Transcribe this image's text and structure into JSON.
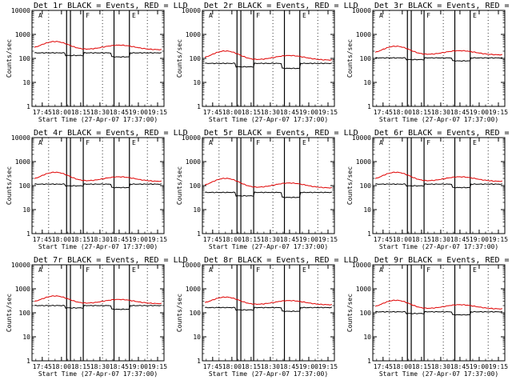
{
  "figure": {
    "colors": {
      "events": "#000000",
      "lld": "#e00000",
      "frame": "#000000",
      "background": "#ffffff"
    }
  },
  "chart_data": [
    {
      "type": "line",
      "title": "Det 1r BLACK = Events, RED = LLD",
      "ylabel": "Counts/sec",
      "xlabel": "Start Time (27-Apr-07 17:37:00)",
      "xticks": [
        "17:45",
        "18:00",
        "18:15",
        "18:30",
        "18:45",
        "19:00",
        "19:15"
      ],
      "yticks": [
        "1",
        "10",
        "100",
        "1000",
        "10000"
      ],
      "ylim": [
        1,
        10000
      ],
      "xlim_minutes": [
        0,
        103
      ],
      "attenuator_markers": [
        "A",
        "F",
        "E"
      ],
      "series": [
        {
          "name": "Events",
          "color": "#000000",
          "base": 170,
          "drops": [
            [
              26,
              40,
              0.78
            ],
            [
              62,
              76,
              0.68
            ]
          ]
        },
        {
          "name": "LLD",
          "color": "#e00000",
          "base": 230,
          "peak": [
            18,
            2.2
          ],
          "bump": [
            68,
            1.55
          ]
        }
      ]
    },
    {
      "type": "line",
      "title": "Det 2r BLACK = Events, RED = LLD",
      "ylabel": "Counts/sec",
      "xlabel": "Start Time (27-Apr-07 17:37:00)",
      "xticks": [
        "17:45",
        "18:00",
        "18:15",
        "18:30",
        "18:45",
        "19:00",
        "19:15"
      ],
      "yticks": [
        "1",
        "10",
        "100",
        "1000",
        "10000"
      ],
      "ylim": [
        1,
        10000
      ],
      "xlim_minutes": [
        0,
        103
      ],
      "attenuator_markers": [
        "A",
        "F",
        "E"
      ],
      "series": [
        {
          "name": "Events",
          "color": "#000000",
          "base": 62,
          "drops": [
            [
              26,
              40,
              0.72
            ],
            [
              62,
              76,
              0.62
            ]
          ]
        },
        {
          "name": "LLD",
          "color": "#e00000",
          "base": 85,
          "peak": [
            18,
            2.4
          ],
          "bump": [
            68,
            1.55
          ]
        }
      ]
    },
    {
      "type": "line",
      "title": "Det 3r BLACK = Events, RED = LLD",
      "ylabel": "Counts/sec",
      "xlabel": "Start Time (27-Apr-07 17:37:00)",
      "xticks": [
        "17:45",
        "18:00",
        "18:15",
        "18:30",
        "18:45",
        "19:00",
        "19:15"
      ],
      "yticks": [
        "1",
        "10",
        "100",
        "1000",
        "10000"
      ],
      "ylim": [
        1,
        10000
      ],
      "xlim_minutes": [
        0,
        103
      ],
      "attenuator_markers": [
        "A",
        "F",
        "E"
      ],
      "series": [
        {
          "name": "Events",
          "color": "#000000",
          "base": 105,
          "drops": [
            [
              26,
              40,
              0.85
            ],
            [
              62,
              76,
              0.75
            ]
          ]
        },
        {
          "name": "LLD",
          "color": "#e00000",
          "base": 140,
          "peak": [
            18,
            2.3
          ],
          "bump": [
            68,
            1.5
          ]
        }
      ]
    },
    {
      "type": "line",
      "title": "Det 4r BLACK = Events, RED = LLD",
      "ylabel": "Counts/sec",
      "xlabel": "Start Time (27-Apr-07 17:37:00)",
      "xticks": [
        "17:45",
        "18:00",
        "18:15",
        "18:30",
        "18:45",
        "19:00",
        "19:15"
      ],
      "yticks": [
        "1",
        "10",
        "100",
        "1000",
        "10000"
      ],
      "ylim": [
        1,
        10000
      ],
      "xlim_minutes": [
        0,
        103
      ],
      "attenuator_markers": [
        "A",
        "F",
        "E"
      ],
      "series": [
        {
          "name": "Events",
          "color": "#000000",
          "base": 115,
          "drops": [
            [
              26,
              40,
              0.85
            ],
            [
              62,
              76,
              0.72
            ]
          ]
        },
        {
          "name": "LLD",
          "color": "#e00000",
          "base": 150,
          "peak": [
            18,
            2.4
          ],
          "bump": [
            68,
            1.55
          ]
        }
      ]
    },
    {
      "type": "line",
      "title": "Det 5r BLACK = Events, RED = LLD",
      "ylabel": "Counts/sec",
      "xlabel": "Start Time (27-Apr-07 17:37:00)",
      "xticks": [
        "17:45",
        "18:00",
        "18:15",
        "18:30",
        "18:45",
        "19:00",
        "19:15"
      ],
      "yticks": [
        "1",
        "10",
        "100",
        "1000",
        "10000"
      ],
      "ylim": [
        1,
        10000
      ],
      "xlim_minutes": [
        0,
        103
      ],
      "attenuator_markers": [
        "A",
        "F",
        "E"
      ],
      "series": [
        {
          "name": "Events",
          "color": "#000000",
          "base": 52,
          "drops": [
            [
              26,
              40,
              0.72
            ],
            [
              62,
              76,
              0.62
            ]
          ]
        },
        {
          "name": "LLD",
          "color": "#e00000",
          "base": 80,
          "peak": [
            18,
            2.5
          ],
          "bump": [
            68,
            1.6
          ]
        }
      ]
    },
    {
      "type": "line",
      "title": "Det 6r BLACK = Events, RED = LLD",
      "ylabel": "Counts/sec",
      "xlabel": "Start Time (27-Apr-07 17:37:00)",
      "xticks": [
        "17:45",
        "18:00",
        "18:15",
        "18:30",
        "18:45",
        "19:00",
        "19:15"
      ],
      "yticks": [
        "1",
        "10",
        "100",
        "1000",
        "10000"
      ],
      "ylim": [
        1,
        10000
      ],
      "xlim_minutes": [
        0,
        103
      ],
      "attenuator_markers": [
        "A",
        "F",
        "E"
      ],
      "series": [
        {
          "name": "Events",
          "color": "#000000",
          "base": 115,
          "drops": [
            [
              26,
              40,
              0.85
            ],
            [
              62,
              76,
              0.72
            ]
          ]
        },
        {
          "name": "LLD",
          "color": "#e00000",
          "base": 150,
          "peak": [
            18,
            2.4
          ],
          "bump": [
            68,
            1.55
          ]
        }
      ]
    },
    {
      "type": "line",
      "title": "Det 7r BLACK = Events, RED = LLD",
      "ylabel": "Counts/sec",
      "xlabel": "Start Time (27-Apr-07 17:37:00)",
      "xticks": [
        "17:45",
        "18:00",
        "18:15",
        "18:30",
        "18:45",
        "19:00",
        "19:15"
      ],
      "yticks": [
        "1",
        "10",
        "100",
        "1000",
        "10000"
      ],
      "ylim": [
        1,
        10000
      ],
      "xlim_minutes": [
        0,
        103
      ],
      "attenuator_markers": [
        "A",
        "F",
        "E"
      ],
      "series": [
        {
          "name": "Events",
          "color": "#000000",
          "base": 200,
          "drops": [
            [
              26,
              40,
              0.8
            ],
            [
              62,
              76,
              0.7
            ]
          ]
        },
        {
          "name": "LLD",
          "color": "#e00000",
          "base": 240,
          "peak": [
            18,
            2.1
          ],
          "bump": [
            68,
            1.5
          ]
        }
      ]
    },
    {
      "type": "line",
      "title": "Det 8r BLACK = Events, RED = LLD",
      "ylabel": "Counts/sec",
      "xlabel": "Start Time (27-Apr-07 17:37:00)",
      "xticks": [
        "17:45",
        "18:00",
        "18:15",
        "18:30",
        "18:45",
        "19:00",
        "19:15"
      ],
      "yticks": [
        "1",
        "10",
        "100",
        "1000",
        "10000"
      ],
      "ylim": [
        1,
        10000
      ],
      "xlim_minutes": [
        0,
        103
      ],
      "attenuator_markers": [
        "A",
        "F",
        "E"
      ],
      "series": [
        {
          "name": "Events",
          "color": "#000000",
          "base": 165,
          "drops": [
            [
              26,
              40,
              0.8
            ],
            [
              62,
              76,
              0.7
            ]
          ]
        },
        {
          "name": "LLD",
          "color": "#e00000",
          "base": 215,
          "peak": [
            18,
            2.1
          ],
          "bump": [
            68,
            1.5
          ]
        }
      ]
    },
    {
      "type": "line",
      "title": "Det 9r BLACK = Events, RED = LLD",
      "ylabel": "Counts/sec",
      "xlabel": "Start Time (27-Apr-07 17:37:00)",
      "xticks": [
        "17:45",
        "18:00",
        "18:15",
        "18:30",
        "18:45",
        "19:00",
        "19:15"
      ],
      "yticks": [
        "1",
        "10",
        "100",
        "1000",
        "10000"
      ],
      "ylim": [
        1,
        10000
      ],
      "xlim_minutes": [
        0,
        103
      ],
      "attenuator_markers": [
        "A",
        "F",
        "E"
      ],
      "series": [
        {
          "name": "Events",
          "color": "#000000",
          "base": 110,
          "drops": [
            [
              26,
              40,
              0.85
            ],
            [
              62,
              76,
              0.75
            ]
          ]
        },
        {
          "name": "LLD",
          "color": "#e00000",
          "base": 145,
          "peak": [
            18,
            2.3
          ],
          "bump": [
            68,
            1.5
          ]
        }
      ]
    }
  ]
}
